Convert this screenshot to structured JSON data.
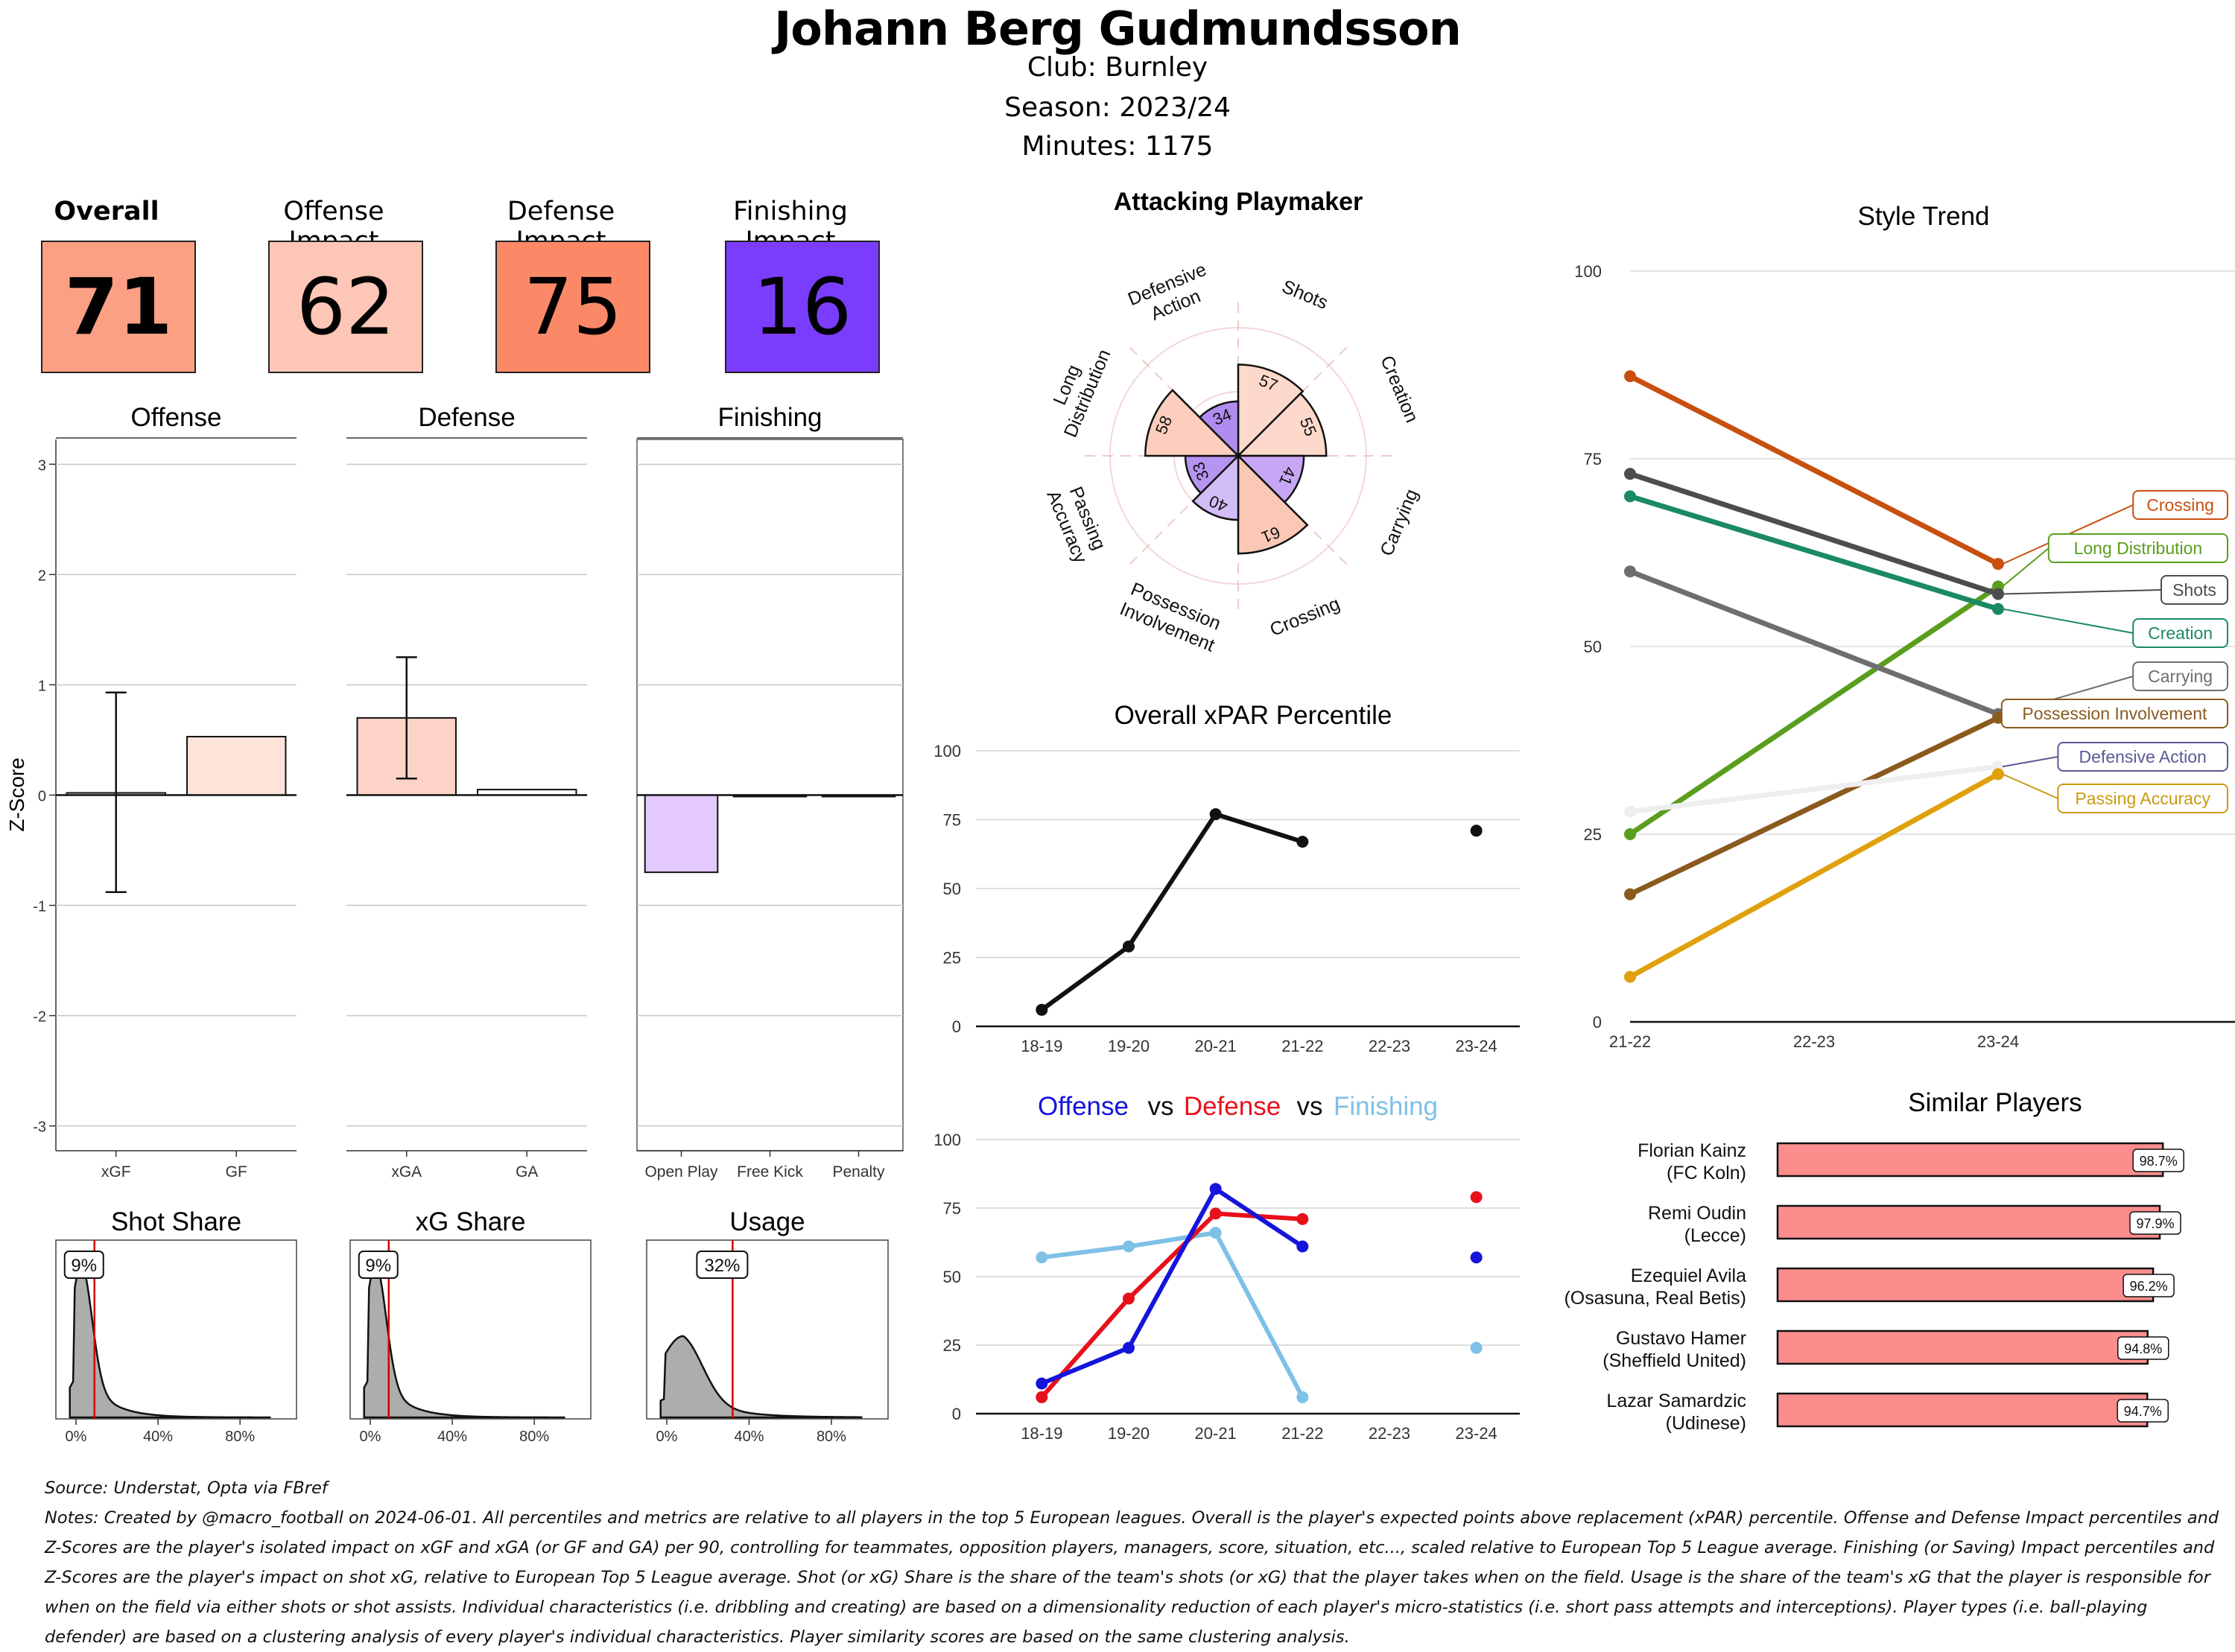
{
  "header": {
    "title": "Johann Berg Gudmundsson",
    "club": "Club:  Burnley",
    "season": "Season:  2023/24",
    "minutes": "Minutes:  1175"
  },
  "cards": [
    {
      "label": "Overall",
      "value": "71",
      "color": "#fca085",
      "bold": true
    },
    {
      "label": "Offense Impact",
      "value": "62",
      "color": "#fdc6b6",
      "bold": false
    },
    {
      "label": "Defense Impact",
      "value": "75",
      "color": "#fb8968",
      "bold": false
    },
    {
      "label": "Finishing Impact",
      "value": "16",
      "color": "#7b3dfd",
      "bold": false
    }
  ],
  "zscore": {
    "ylabel": "Z-Score",
    "ticks": [
      "3",
      "2",
      "1",
      "0",
      "-1",
      "-2",
      "-3"
    ],
    "panels": [
      {
        "title": "Offense",
        "categories": [
          "xGF",
          "GF"
        ],
        "values": [
          0.02,
          0.53
        ],
        "err": [
          [
            -0.88,
            0.93
          ],
          null
        ],
        "colors": [
          "#fde3da",
          "#fde3da"
        ]
      },
      {
        "title": "Defense",
        "categories": [
          "xGA",
          "GA"
        ],
        "values": [
          0.7,
          0.05
        ],
        "err": [
          [
            0.15,
            1.25
          ],
          null
        ],
        "colors": [
          "#fcd3c6",
          "#ffffff"
        ]
      },
      {
        "title": "Finishing",
        "categories": [
          "Open Play",
          "Free Kick",
          "Penalty"
        ],
        "values": [
          -0.7,
          0,
          0
        ],
        "err": [
          null,
          null,
          null
        ],
        "colors": [
          "#e3c9fd",
          "#ffffff",
          "#ffffff"
        ]
      }
    ]
  },
  "shares": [
    {
      "title": "Shot Share",
      "value_label": "9%",
      "value": 9,
      "ticks": [
        "0%",
        "40%",
        "80%"
      ]
    },
    {
      "title": "xG Share",
      "value_label": "9%",
      "value": 9,
      "ticks": [
        "0%",
        "40%",
        "80%"
      ]
    },
    {
      "title": "Usage",
      "value_label": "32%",
      "value": 32,
      "ticks": [
        "0%",
        "40%",
        "80%"
      ]
    }
  ],
  "radar": {
    "title": "Attacking Playmaker",
    "categories": [
      "Shots",
      "Creation",
      "Carrying",
      "Crossing",
      "Possession Involvement",
      "Passing Accuracy",
      "Long Distribution",
      "Defensive Action"
    ],
    "values": [
      57,
      55,
      41,
      61,
      40,
      33,
      58,
      34
    ],
    "colors": [
      "#fdd9cb",
      "#fdd9cb",
      "#c7a6f5",
      "#fcc8b6",
      "#d3bdf8",
      "#b594f2",
      "#fdcebd",
      "#b08cf0"
    ]
  },
  "xpar": {
    "title": "Overall xPAR Percentile",
    "x": [
      "18-19",
      "19-20",
      "20-21",
      "21-22",
      "22-23",
      "23-24"
    ],
    "values": [
      6,
      29,
      77,
      67,
      null,
      71
    ],
    "yticks": [
      "0",
      "25",
      "50",
      "75",
      "100"
    ]
  },
  "ovd": {
    "title_parts": [
      "Offense",
      "vs",
      "Defense",
      "vs",
      "Finishing"
    ],
    "x": [
      "18-19",
      "19-20",
      "20-21",
      "21-22",
      "22-23",
      "23-24"
    ],
    "yticks": [
      "0",
      "25",
      "50",
      "75",
      "100"
    ],
    "series": [
      {
        "name": "Finishing",
        "color": "#7ec0e6",
        "values": [
          57,
          61,
          66,
          6,
          null,
          24
        ]
      },
      {
        "name": "Defense",
        "color": "#e8111b",
        "values": [
          6,
          42,
          73,
          71,
          null,
          79
        ]
      },
      {
        "name": "Offense",
        "color": "#1414dc",
        "values": [
          11,
          24,
          82,
          61,
          null,
          57
        ]
      }
    ]
  },
  "style_trend": {
    "title": "Style Trend",
    "x": [
      "21-22",
      "22-23",
      "23-24"
    ],
    "yticks": [
      "0",
      "25",
      "50",
      "75",
      "100"
    ],
    "series": [
      {
        "name": "Crossing",
        "color": "#c8500f",
        "values": [
          86,
          null,
          61
        ]
      },
      {
        "name": "Long Distribution",
        "color": "#5a9e1e",
        "values": [
          25,
          null,
          58
        ]
      },
      {
        "name": "Shots",
        "color": "#4d4d4d",
        "values": [
          73,
          null,
          57
        ]
      },
      {
        "name": "Creation",
        "color": "#1b8a63",
        "values": [
          70,
          null,
          55
        ]
      },
      {
        "name": "Carrying",
        "color": "#6e6e6e",
        "values": [
          60,
          null,
          41
        ]
      },
      {
        "name": "Possession Involvement",
        "color": "#8a5a1e",
        "values": [
          17,
          null,
          40.5
        ]
      },
      {
        "name": "Defensive Action",
        "color": "#eeeeee",
        "label_color": "#5a5a96",
        "values": [
          28,
          null,
          34
        ]
      },
      {
        "name": "Passing Accuracy",
        "color": "#e0a10f",
        "label_color": "#c99a12",
        "values": [
          6,
          null,
          33
        ]
      }
    ]
  },
  "similar": {
    "title": "Similar Players",
    "color": "#fb8d8d",
    "players": [
      {
        "name": "Florian Kainz",
        "team": "(FC Koln)",
        "value": 98.7,
        "label": "98.7%"
      },
      {
        "name": "Remi Oudin",
        "team": "(Lecce)",
        "value": 97.9,
        "label": "97.9%"
      },
      {
        "name": "Ezequiel Avila",
        "team": "(Osasuna, Real Betis)",
        "value": 96.2,
        "label": "96.2%"
      },
      {
        "name": "Gustavo Hamer",
        "team": "(Sheffield United)",
        "value": 94.8,
        "label": "94.8%"
      },
      {
        "name": "Lazar Samardzic",
        "team": "(Udinese)",
        "value": 94.7,
        "label": "94.7%"
      }
    ]
  },
  "notes": {
    "source": "Source: Understat, Opta via FBref",
    "text": "Notes: Created by @macro_football on 2024-06-01. All percentiles and metrics are relative to all players in the top 5 European leagues. Overall is the player's expected points above replacement (xPAR) percentile. Offense and Defense Impact percentiles and Z-Scores are the player's isolated impact on xGF and xGA (or GF and GA) per 90, controlling for teammates, opposition players, managers, score, situation, etc..., scaled relative to European Top 5 League average. Finishing (or Saving) Impact percentiles and Z-Scores are the player's impact on shot xG, relative to European Top 5 League average. Shot (or xG) Share is the share of the team's shots (or xG) that the player takes when on the field. Usage is the share of the team's xG that the player is responsible for when on the field via either shots or shot assists. Individual characteristics (i.e. dribbling and creating) are based on a dimensionality reduction of each player's micro-statistics (i.e. short pass attempts and interceptions). Player types (i.e. ball-playing defender) are based on a clustering analysis of every player's individual characteristics. Player similarity scores are based on the same clustering analysis."
  },
  "chart_data": [
    {
      "type": "bar",
      "title": "Offense",
      "categories": [
        "xGF",
        "GF"
      ],
      "values": [
        0.02,
        0.53
      ],
      "ylabel": "Z-Score",
      "ylim": [
        -3,
        3
      ]
    },
    {
      "type": "bar",
      "title": "Defense",
      "categories": [
        "xGA",
        "GA"
      ],
      "values": [
        0.7,
        0.05
      ],
      "ylim": [
        -3,
        3
      ]
    },
    {
      "type": "bar",
      "title": "Finishing",
      "categories": [
        "Open Play",
        "Free Kick",
        "Penalty"
      ],
      "values": [
        -0.7,
        0,
        0
      ],
      "ylim": [
        -3,
        3
      ]
    },
    {
      "type": "area",
      "title": "Shot Share",
      "marker": 9
    },
    {
      "type": "area",
      "title": "xG Share",
      "marker": 9
    },
    {
      "type": "area",
      "title": "Usage",
      "marker": 32
    },
    {
      "type": "bar",
      "title": "Attacking Playmaker",
      "categories": [
        "Shots",
        "Creation",
        "Carrying",
        "Crossing",
        "Possession Involvement",
        "Passing Accuracy",
        "Long Distribution",
        "Defensive Action"
      ],
      "values": [
        57,
        55,
        41,
        61,
        40,
        33,
        58,
        34
      ]
    },
    {
      "type": "line",
      "title": "Overall xPAR Percentile",
      "x": [
        "18-19",
        "19-20",
        "20-21",
        "21-22",
        "22-23",
        "23-24"
      ],
      "values": [
        6,
        29,
        77,
        67,
        null,
        71
      ],
      "ylim": [
        0,
        100
      ]
    },
    {
      "type": "line",
      "x": [
        "18-19",
        "19-20",
        "20-21",
        "21-22",
        "22-23",
        "23-24"
      ],
      "series": [
        {
          "name": "Offense",
          "values": [
            11,
            24,
            82,
            61,
            null,
            57
          ]
        },
        {
          "name": "Defense",
          "values": [
            6,
            42,
            73,
            71,
            null,
            79
          ]
        },
        {
          "name": "Finishing",
          "values": [
            57,
            61,
            66,
            6,
            null,
            24
          ]
        }
      ],
      "ylim": [
        0,
        100
      ]
    },
    {
      "type": "line",
      "title": "Style Trend",
      "x": [
        "21-22",
        "22-23",
        "23-24"
      ],
      "series": [
        {
          "name": "Crossing",
          "values": [
            86,
            null,
            61
          ]
        },
        {
          "name": "Long Distribution",
          "values": [
            25,
            null,
            58
          ]
        },
        {
          "name": "Shots",
          "values": [
            73,
            null,
            57
          ]
        },
        {
          "name": "Creation",
          "values": [
            70,
            null,
            55
          ]
        },
        {
          "name": "Carrying",
          "values": [
            60,
            null,
            41
          ]
        },
        {
          "name": "Possession Involvement",
          "values": [
            17,
            null,
            40.5
          ]
        },
        {
          "name": "Defensive Action",
          "values": [
            28,
            null,
            34
          ]
        },
        {
          "name": "Passing Accuracy",
          "values": [
            6,
            null,
            33
          ]
        }
      ],
      "ylim": [
        0,
        100
      ]
    },
    {
      "type": "bar",
      "title": "Similar Players",
      "categories": [
        "Florian Kainz",
        "Remi Oudin",
        "Ezequiel Avila",
        "Gustavo Hamer",
        "Lazar Samardzic"
      ],
      "values": [
        98.7,
        97.9,
        96.2,
        94.8,
        94.7
      ]
    }
  ]
}
